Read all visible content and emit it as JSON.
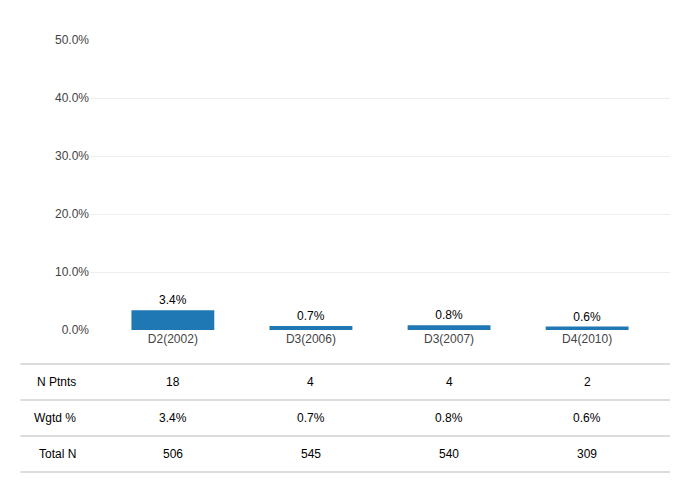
{
  "chart_data": {
    "type": "bar",
    "categories": [
      "D2(2002)",
      "D3(2006)",
      "D3(2007)",
      "D4(2010)"
    ],
    "values": [
      3.4,
      0.7,
      0.8,
      0.6
    ],
    "value_labels": [
      "3.4%",
      "0.7%",
      "0.8%",
      "0.6%"
    ],
    "data_labels": true,
    "ylim": [
      0,
      50
    ],
    "yticks": [
      {
        "value": 0,
        "label": "0.0%"
      },
      {
        "value": 10,
        "label": "10.0%"
      },
      {
        "value": 20,
        "label": "20.0%"
      },
      {
        "value": 30,
        "label": "30.0%"
      },
      {
        "value": 40,
        "label": "40.0%"
      },
      {
        "value": 50,
        "label": "50.0%"
      }
    ],
    "grid": true,
    "table": [
      {
        "name": "N Ptnts",
        "values": [
          18,
          4,
          4,
          2
        ]
      },
      {
        "name": "Wgtd %",
        "values": [
          3.4,
          0.7,
          0.8,
          0.6
        ],
        "value_labels": [
          "3.4%",
          "0.7%",
          "0.8%",
          "0.6%"
        ]
      },
      {
        "name": "Total N",
        "values": [
          506,
          545,
          540,
          309
        ]
      }
    ]
  }
}
